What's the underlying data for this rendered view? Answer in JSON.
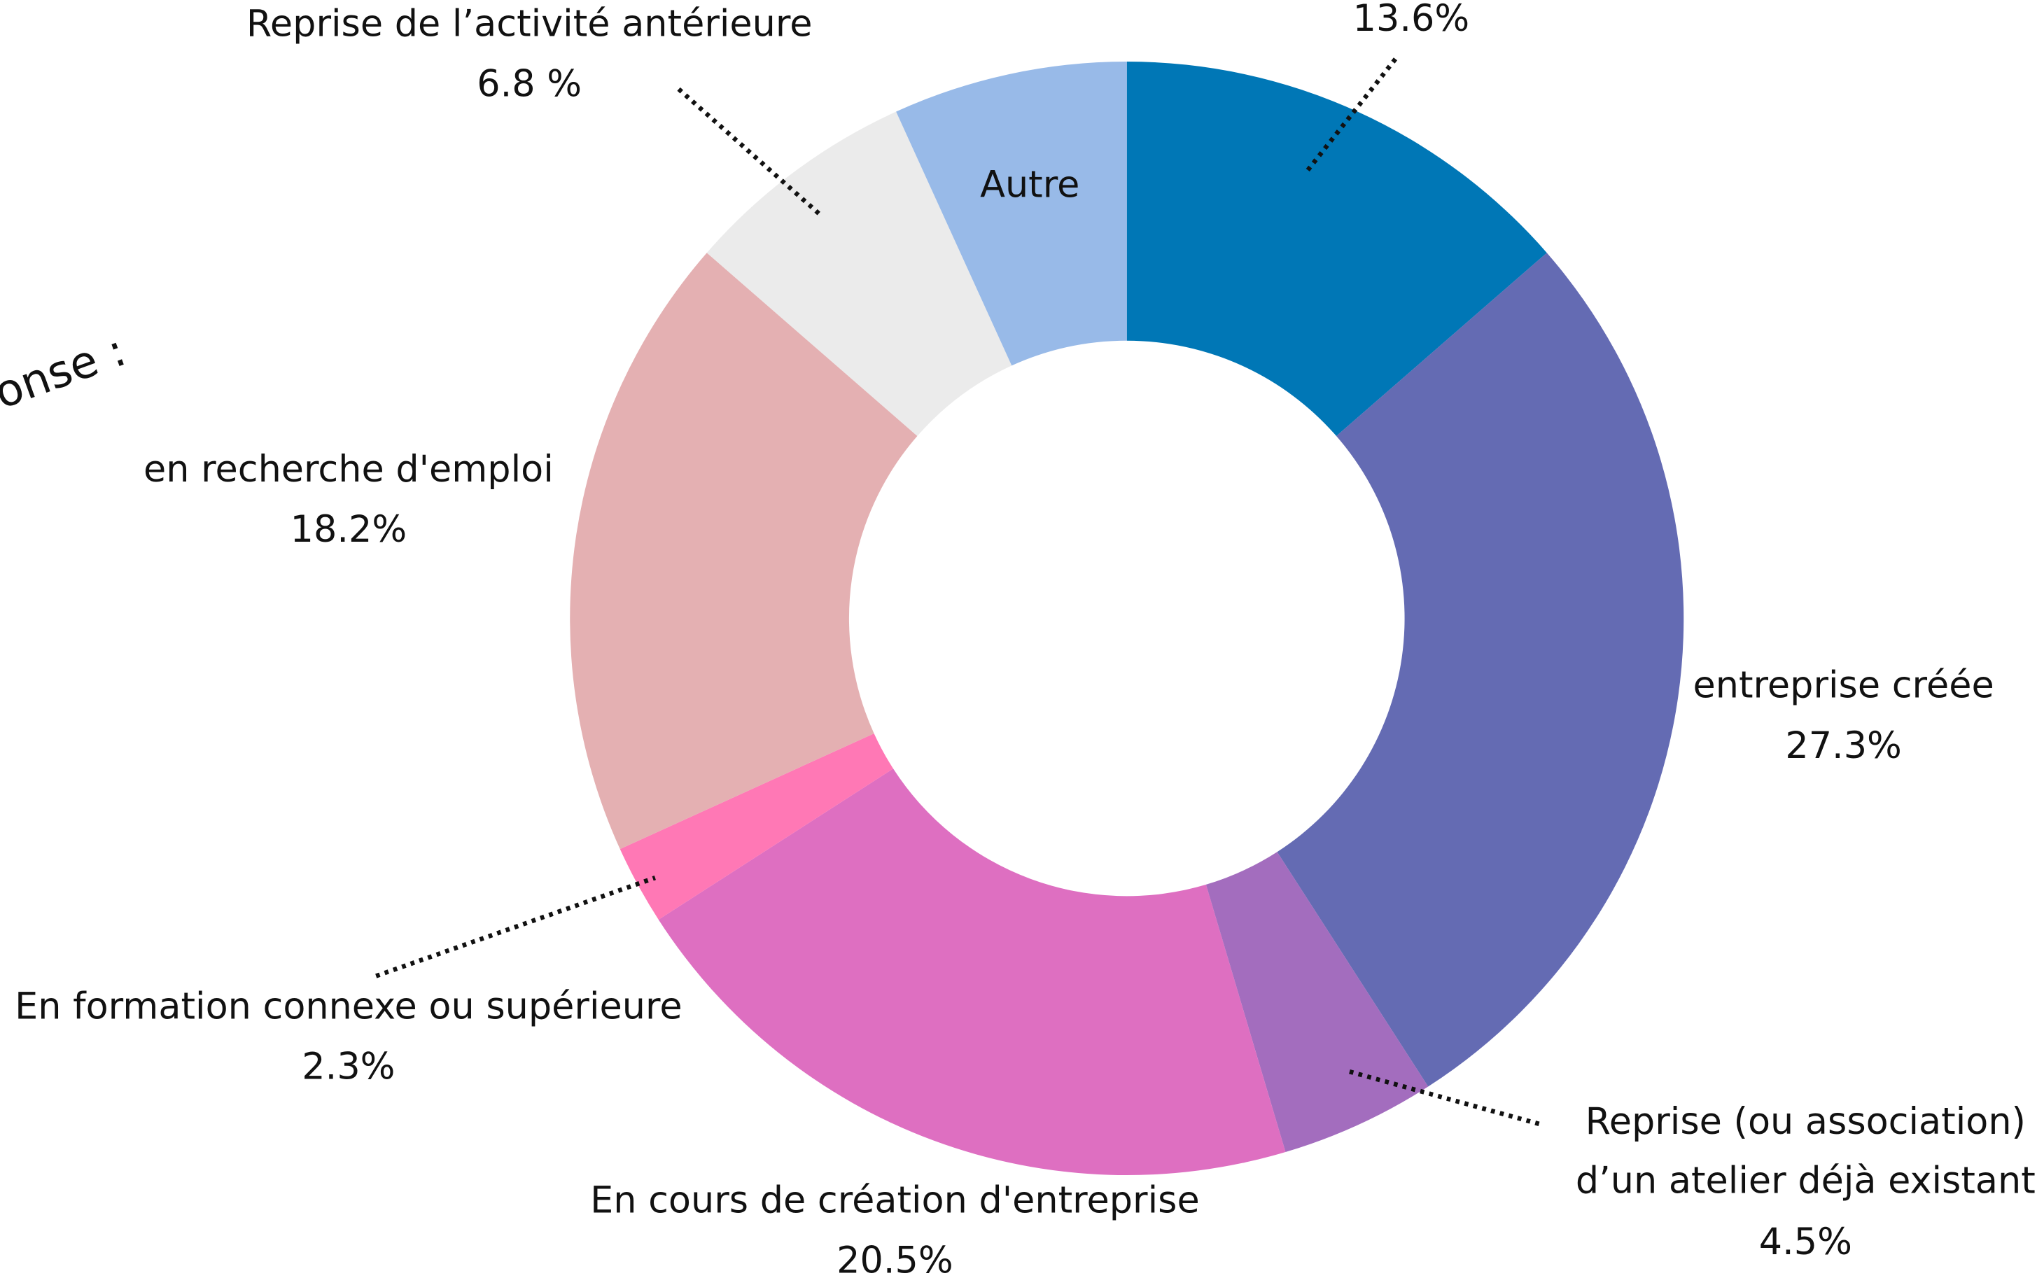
{
  "chart_data": {
    "type": "donut",
    "title": "onse :",
    "categories": [
      null,
      "entreprise créée",
      "Reprise (ou association)\nd’un atelier déjà existant",
      "En cours de création d'entreprise",
      "En formation connexe ou supérieure",
      "en recherche d'emploi",
      "Reprise de l’activité antérieure",
      "Autre"
    ],
    "values": [
      13.6,
      27.3,
      4.5,
      20.5,
      2.3,
      18.2,
      6.8,
      6.8
    ],
    "value_labels": [
      "13.6%",
      "27.3%",
      "4.5%",
      "20.5%",
      "2.3%",
      "18.2%",
      "6.8 %",
      null
    ],
    "colors": [
      "#0077b6",
      "#646bb3",
      "#a36dbe",
      "#de6fc1",
      "#ff78b5",
      "#e4b0b2",
      "#ebebeb",
      "#98bae8"
    ]
  }
}
